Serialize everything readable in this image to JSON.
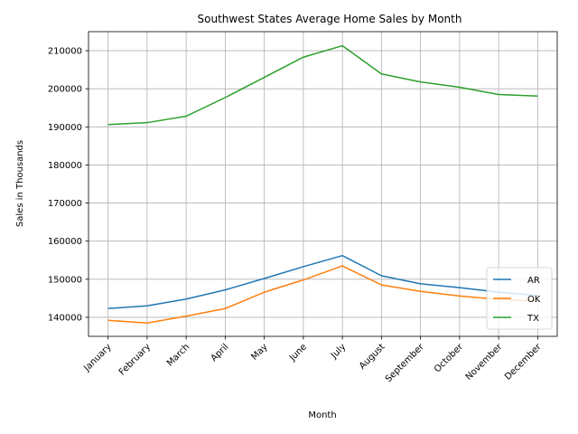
{
  "chart_data": {
    "type": "line",
    "title": "Southwest States Average Home Sales by Month",
    "xlabel": "Month",
    "ylabel": "Sales in Thousands",
    "categories": [
      "January",
      "February",
      "March",
      "April",
      "May",
      "June",
      "July",
      "August",
      "September",
      "October",
      "November",
      "December"
    ],
    "ylim": [
      135000,
      215000
    ],
    "yticks": [
      "140000",
      "150000",
      "160000",
      "170000",
      "180000",
      "190000",
      "200000",
      "210000"
    ],
    "grid": true,
    "legend_position": "lower-right",
    "series": [
      {
        "name": "AR",
        "color": "#1f77b4",
        "values": [
          142300,
          143000,
          144800,
          147200,
          150200,
          153300,
          156200,
          150900,
          148800,
          147800,
          146600,
          145700
        ]
      },
      {
        "name": "OK",
        "color": "#ff7f0e",
        "values": [
          139200,
          138500,
          140300,
          142300,
          146600,
          149800,
          153500,
          148500,
          146800,
          145600,
          144700,
          144200
        ]
      },
      {
        "name": "TX",
        "color": "#2ca02c",
        "values": [
          190600,
          191100,
          192800,
          197700,
          203000,
          208300,
          211300,
          203900,
          201800,
          200400,
          198500,
          198100
        ]
      }
    ]
  }
}
